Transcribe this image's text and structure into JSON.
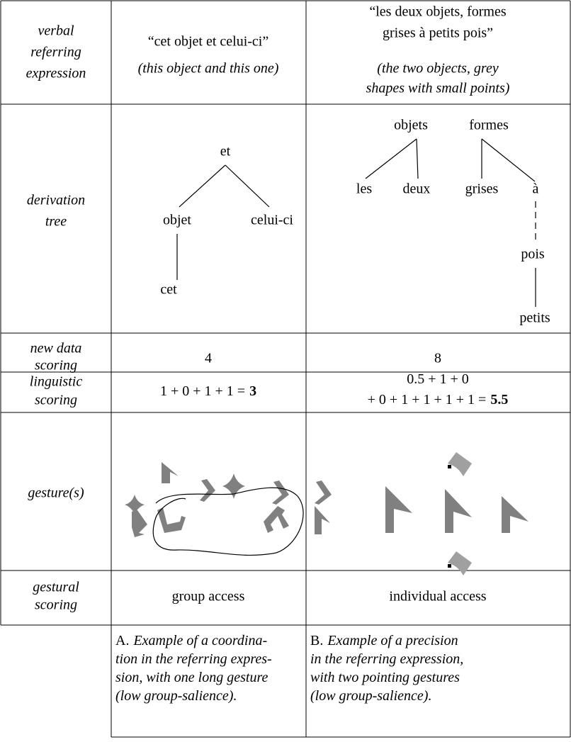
{
  "table": {
    "rows": [
      {
        "label": [
          "verbal",
          "referring",
          "expression"
        ],
        "cells": [
          {
            "quote": [
              "“cet objet et celui-ci”"
            ],
            "translation": [
              "(this object and this one)"
            ]
          },
          {
            "quote": [
              "“les deux objets, formes",
              "grises à petits pois”"
            ],
            "translation": [
              "(the two objects, grey",
              "shapes with small points)"
            ]
          }
        ]
      },
      {
        "label": [
          "derivation",
          "tree"
        ],
        "trees": [
          {
            "nodes": [
              "et",
              "objet",
              "celui-ci",
              "cet"
            ]
          },
          {
            "nodes": [
              "objets",
              "formes",
              "les",
              "deux",
              "grises",
              "à",
              "pois",
              "petits"
            ]
          }
        ]
      },
      {
        "label": [
          "new data",
          "scoring"
        ],
        "cells": [
          "4",
          "8"
        ]
      },
      {
        "label": [
          "linguistic",
          "scoring"
        ],
        "cells": [
          {
            "lines": [
              "1 + 0 + 1 + 1 ="
            ],
            "result": "3"
          },
          {
            "lines": [
              "0.5 + 1 + 0",
              "+ 0 + 1 + 1 + 1 + 1 ="
            ],
            "result": "5.5"
          }
        ]
      },
      {
        "label": [
          "gesture(s)"
        ]
      },
      {
        "label": [
          "gestural",
          "scoring"
        ],
        "cells": [
          "group access",
          "individual access"
        ]
      }
    ],
    "captions": [
      {
        "letter": "A.",
        "lines": [
          "Example of a coordina-",
          "tion in the referring expres-",
          "sion, with one long gesture",
          "(low group-salience)."
        ]
      },
      {
        "letter": "B.",
        "lines": [
          "Example of a precision",
          "in the referring expression,",
          "with two pointing gestures",
          "(low group-salience)."
        ]
      }
    ]
  }
}
